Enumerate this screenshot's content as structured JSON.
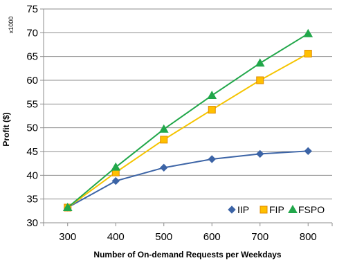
{
  "chart_data": {
    "type": "line",
    "xlabel": "Number of On-demand Requests per Weekdays",
    "ylabel": "Profit ($)",
    "y_multiplier_label": "x1000",
    "x": [
      300,
      400,
      500,
      600,
      700,
      800
    ],
    "xlim": [
      250,
      850
    ],
    "ylim": [
      30,
      75
    ],
    "x_ticks": [
      "300",
      "400",
      "500",
      "600",
      "700",
      "800"
    ],
    "y_ticks": [
      "30",
      "35",
      "40",
      "45",
      "50",
      "55",
      "60",
      "65",
      "70",
      "75"
    ],
    "grid": "horizontal",
    "legend_position": "bottom-right",
    "series": [
      {
        "name": "IIP",
        "marker": "diamond",
        "color": "#3c64a6",
        "values": [
          33.2,
          38.8,
          41.6,
          43.4,
          44.5,
          45.1
        ]
      },
      {
        "name": "FIP",
        "marker": "square",
        "color": "#f5c400",
        "fill": "#ffc000",
        "values": [
          33.2,
          40.6,
          47.5,
          53.8,
          60.0,
          65.6
        ]
      },
      {
        "name": "FSPO",
        "marker": "triangle",
        "color": "#21a74a",
        "values": [
          33.2,
          41.7,
          49.7,
          56.8,
          63.6,
          69.8
        ]
      }
    ]
  }
}
